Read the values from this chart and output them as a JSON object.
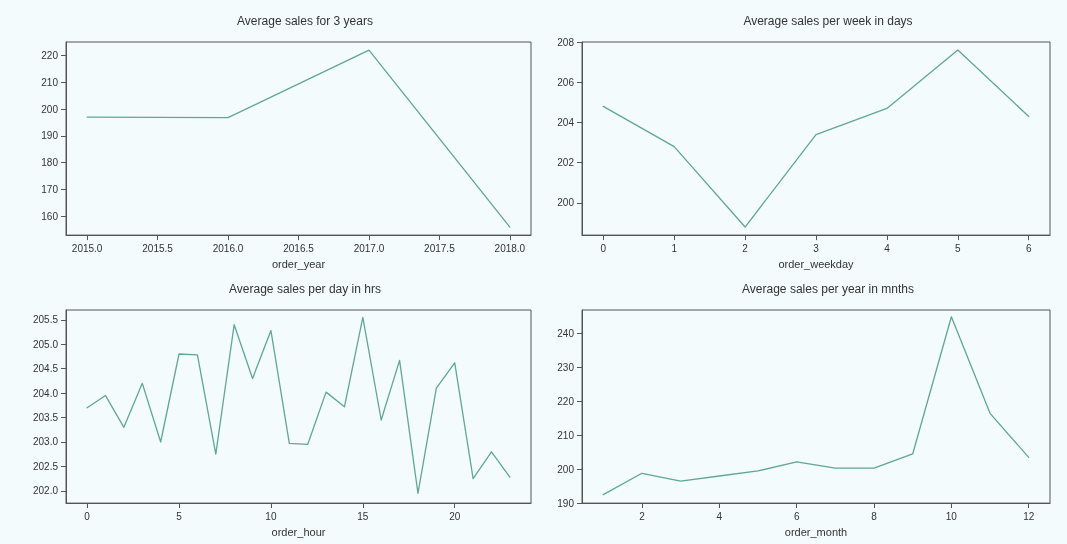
{
  "chart_data": [
    {
      "type": "line",
      "title": "Average sales for 3 years",
      "xlabel": "order_year",
      "x": [
        2015,
        2016,
        2017,
        2018
      ],
      "series": [
        {
          "color": "#5fa891",
          "values": [
            197,
            196.8,
            222,
            156
          ]
        }
      ],
      "xlim": [
        2014.85,
        2018.15
      ],
      "xticks": [
        {
          "value": 2015,
          "label": "2015.0"
        },
        {
          "value": 2015.5,
          "label": "2015.5"
        },
        {
          "value": 2016,
          "label": "2016.0"
        },
        {
          "value": 2016.5,
          "label": "2016.5"
        },
        {
          "value": 2017,
          "label": "2017.0"
        },
        {
          "value": 2017.5,
          "label": "2017.5"
        },
        {
          "value": 2018,
          "label": "2018.0"
        }
      ],
      "ylim": [
        153,
        225
      ],
      "yticks": [
        160,
        170,
        180,
        190,
        200,
        210,
        220
      ],
      "grid": false
    },
    {
      "type": "line",
      "title": "Average sales per week in days",
      "xlabel": "order_weekday",
      "x": [
        0,
        1,
        2,
        3,
        4,
        5,
        6
      ],
      "series": [
        {
          "color": "#5fa891",
          "values": [
            204.8,
            202.8,
            198.8,
            203.4,
            204.7,
            207.6,
            204.3
          ]
        }
      ],
      "xlim": [
        -0.3,
        6.3
      ],
      "xticks": [
        0,
        1,
        2,
        3,
        4,
        5,
        6
      ],
      "ylim": [
        198.4,
        208
      ],
      "yticks": [
        200,
        202,
        204,
        206,
        208
      ],
      "grid": false
    },
    {
      "type": "line",
      "title": "Average sales per day in hrs",
      "xlabel": "order_hour",
      "x": [
        0,
        1,
        2,
        3,
        4,
        5,
        6,
        7,
        8,
        9,
        10,
        11,
        12,
        13,
        14,
        15,
        16,
        17,
        18,
        19,
        20,
        21,
        22,
        23
      ],
      "series": [
        {
          "color": "#5fa891",
          "values": [
            203.7,
            203.95,
            203.3,
            204.2,
            203.0,
            204.8,
            204.78,
            202.75,
            205.4,
            204.3,
            205.28,
            202.97,
            202.95,
            204.02,
            203.72,
            205.55,
            203.45,
            204.67,
            201.95,
            204.1,
            204.62,
            202.25,
            202.8,
            202.28
          ]
        }
      ],
      "xlim": [
        -1.15,
        24.15
      ],
      "xticks": [
        0,
        5,
        10,
        15,
        20
      ],
      "ylim": [
        201.75,
        205.7
      ],
      "yticks": [
        {
          "value": 202,
          "label": "202.0"
        },
        {
          "value": 202.5,
          "label": "202.5"
        },
        {
          "value": 203,
          "label": "203.0"
        },
        {
          "value": 203.5,
          "label": "203.5"
        },
        {
          "value": 204,
          "label": "204.0"
        },
        {
          "value": 204.5,
          "label": "204.5"
        },
        {
          "value": 205,
          "label": "205.0"
        },
        {
          "value": 205.5,
          "label": "205.5"
        }
      ],
      "grid": false
    },
    {
      "type": "line",
      "title": "Average sales per year in mnths",
      "xlabel": "order_month",
      "x": [
        1,
        2,
        3,
        4,
        5,
        6,
        7,
        8,
        9,
        10,
        11,
        12
      ],
      "series": [
        {
          "color": "#5fa891",
          "values": [
            192.5,
            198.8,
            196.5,
            198,
            199.5,
            202.2,
            200.3,
            200.3,
            204.5,
            245,
            216.5,
            203.5
          ]
        }
      ],
      "xlim": [
        0.45,
        12.55
      ],
      "xticks": [
        2,
        4,
        6,
        8,
        10,
        12
      ],
      "ylim": [
        190,
        247
      ],
      "yticks": [
        190,
        200,
        210,
        220,
        230,
        240
      ],
      "grid": false
    }
  ]
}
